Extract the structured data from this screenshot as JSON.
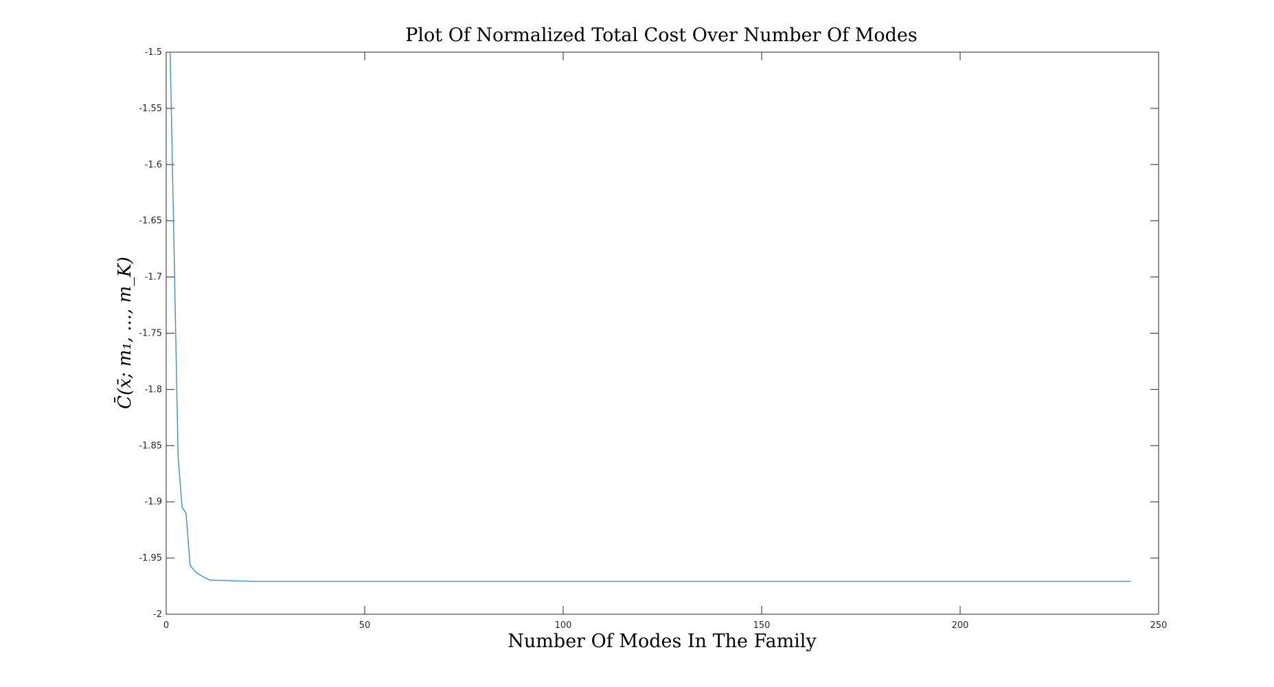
{
  "chart_data": {
    "type": "line",
    "title": "Plot Of Normalized Total Cost Over Number Of Modes",
    "xlabel": "Number Of Modes In The Family",
    "ylabel": "C̄(x̄; m₁, ..., m_K)",
    "xlim": [
      0,
      250
    ],
    "ylim": [
      -2,
      -1.5
    ],
    "grid": false,
    "x_ticks": [
      "0",
      "50",
      "100",
      "150",
      "200",
      "250"
    ],
    "y_ticks": [
      "-2",
      "-1.95",
      "-1.9",
      "-1.85",
      "-1.8",
      "-1.75",
      "-1.7",
      "-1.65",
      "-1.6",
      "-1.55",
      "-1.5"
    ],
    "series": [
      {
        "color": "#3c8fc4",
        "x": [
          1,
          2,
          3,
          4,
          5,
          6,
          7,
          8,
          9,
          10,
          11,
          12,
          13,
          15,
          17,
          20,
          22,
          25,
          30,
          50,
          100,
          150,
          200,
          243
        ],
        "y": [
          -1.5,
          -1.68,
          -1.86,
          -1.905,
          -1.91,
          -1.956,
          -1.961,
          -1.964,
          -1.966,
          -1.968,
          -1.9695,
          -1.9697,
          -1.9698,
          -1.97,
          -1.9703,
          -1.9705,
          -1.9708,
          -1.9708,
          -1.9708,
          -1.9708,
          -1.9708,
          -1.9708,
          -1.9708,
          -1.9708
        ]
      }
    ]
  }
}
